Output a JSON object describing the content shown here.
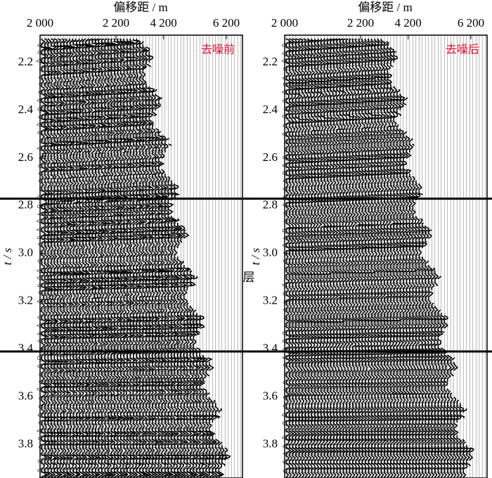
{
  "x_label": "偏移距 / m",
  "y_label": "t / s",
  "annotation": "目的层",
  "horizons": [
    2.77,
    3.41
  ],
  "chart_data": [
    {
      "type": "seismic",
      "label": "去噪前",
      "xticks": [
        "2 000",
        "2 200",
        "4 200",
        "6 200"
      ],
      "ylim": [
        2.085,
        3.94
      ],
      "yticks": [
        2.2,
        2.4,
        2.6,
        2.8,
        {
          "value": 3,
          "label": "3.0"
        },
        3.2,
        3.4,
        3.6,
        3.8
      ]
    },
    {
      "type": "seismic",
      "label": "去噪后",
      "xticks": [
        "2 000",
        "2 200",
        "4 200",
        "6 200"
      ],
      "ylim": [
        2.085,
        3.94
      ],
      "yticks": [
        2.2,
        2.4,
        2.6,
        2.8,
        {
          "value": 3,
          "label": "3.0"
        },
        3.2,
        3.4,
        3.6,
        3.8
      ]
    }
  ]
}
